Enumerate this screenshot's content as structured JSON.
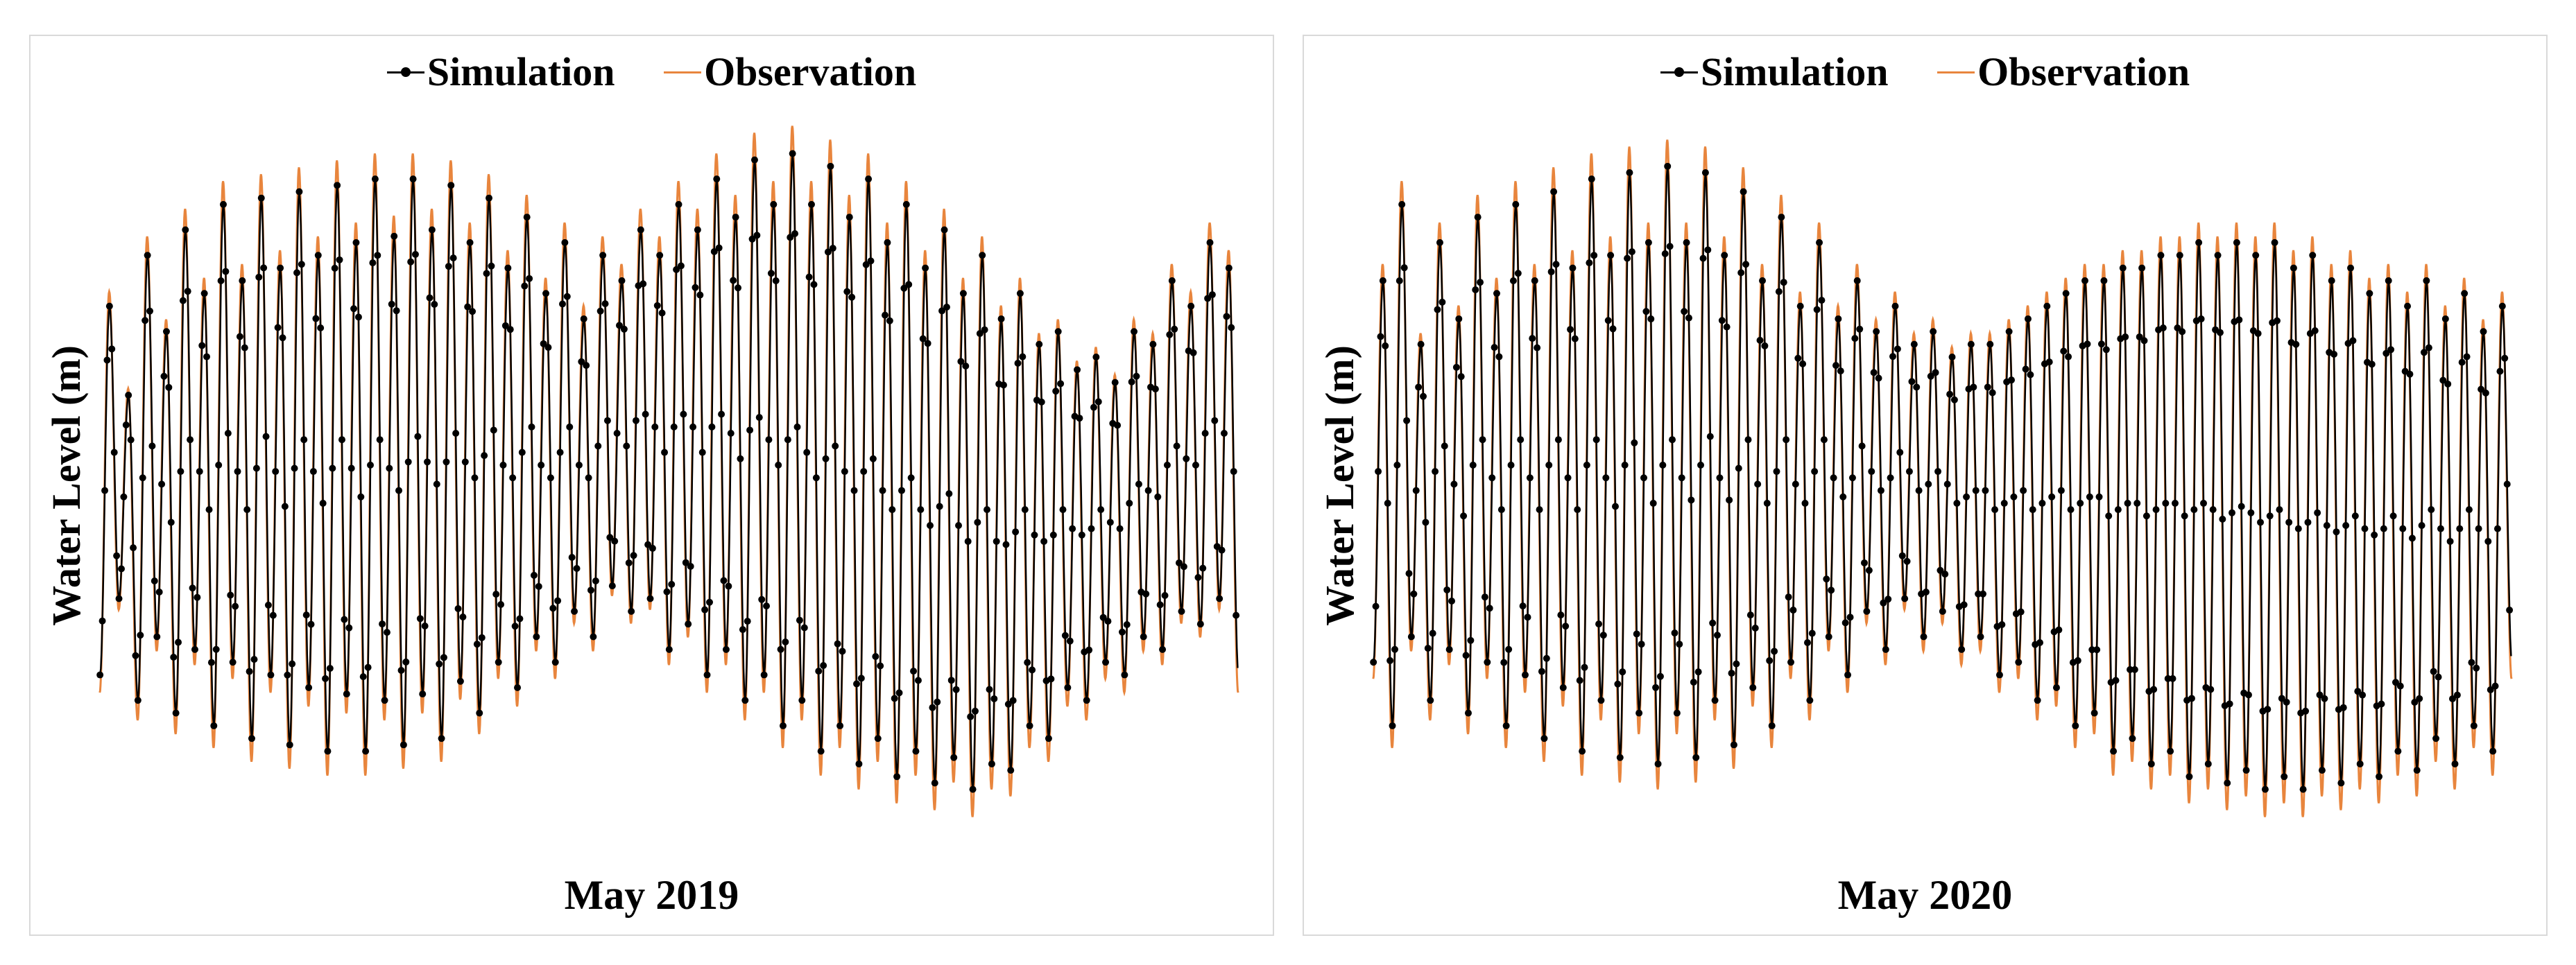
{
  "chart_data": [
    {
      "type": "line",
      "xlabel": "May 2019",
      "ylabel": "Water Level (m)",
      "legend": [
        "Simulation",
        "Observation"
      ],
      "legend_position": "top-center",
      "grid": false,
      "x_unit": "hour",
      "x_range": [
        0,
        744
      ],
      "y_range_relative": [
        0,
        1
      ],
      "tidal_cycles": 60,
      "tidal_peaks_relative": [
        0.76,
        0.62,
        0.84,
        0.72,
        0.88,
        0.78,
        0.92,
        0.8,
        0.93,
        0.82,
        0.94,
        0.84,
        0.95,
        0.86,
        0.96,
        0.87,
        0.96,
        0.88,
        0.95,
        0.86,
        0.93,
        0.82,
        0.9,
        0.78,
        0.86,
        0.74,
        0.84,
        0.8,
        0.88,
        0.84,
        0.92,
        0.88,
        0.96,
        0.9,
        0.99,
        0.92,
        1.0,
        0.92,
        0.98,
        0.9,
        0.96,
        0.86,
        0.92,
        0.82,
        0.88,
        0.78,
        0.84,
        0.74,
        0.78,
        0.7,
        0.72,
        0.66,
        0.68,
        0.64,
        0.72,
        0.7,
        0.8,
        0.76,
        0.86,
        0.82
      ],
      "tidal_troughs_relative": [
        0.18,
        0.3,
        0.14,
        0.24,
        0.12,
        0.22,
        0.1,
        0.2,
        0.08,
        0.18,
        0.07,
        0.16,
        0.06,
        0.15,
        0.06,
        0.14,
        0.07,
        0.15,
        0.08,
        0.17,
        0.12,
        0.2,
        0.16,
        0.24,
        0.2,
        0.28,
        0.24,
        0.32,
        0.28,
        0.3,
        0.22,
        0.26,
        0.18,
        0.22,
        0.14,
        0.18,
        0.1,
        0.14,
        0.06,
        0.1,
        0.04,
        0.08,
        0.02,
        0.06,
        0.01,
        0.05,
        0.0,
        0.04,
        0.03,
        0.1,
        0.08,
        0.16,
        0.14,
        0.2,
        0.18,
        0.24,
        0.22,
        0.28,
        0.26,
        0.3
      ],
      "series": [
        {
          "name": "Simulation",
          "color": "#000000",
          "marker": "circle"
        },
        {
          "name": "Observation",
          "color": "#e8853d",
          "marker": "none"
        }
      ]
    },
    {
      "type": "line",
      "xlabel": "May 2020",
      "ylabel": "Water Level (m)",
      "legend": [
        "Simulation",
        "Observation"
      ],
      "legend_position": "top-center",
      "grid": false,
      "x_unit": "hour",
      "x_range": [
        0,
        744
      ],
      "y_range_relative": [
        0,
        1
      ],
      "tidal_cycles": 60,
      "tidal_peaks_relative": [
        0.8,
        0.92,
        0.7,
        0.86,
        0.74,
        0.9,
        0.78,
        0.92,
        0.8,
        0.94,
        0.82,
        0.96,
        0.84,
        0.97,
        0.86,
        0.98,
        0.86,
        0.97,
        0.84,
        0.94,
        0.8,
        0.9,
        0.76,
        0.86,
        0.74,
        0.8,
        0.72,
        0.76,
        0.7,
        0.72,
        0.68,
        0.7,
        0.7,
        0.72,
        0.74,
        0.76,
        0.78,
        0.8,
        0.8,
        0.82,
        0.82,
        0.84,
        0.84,
        0.86,
        0.84,
        0.86,
        0.84,
        0.86,
        0.82,
        0.84,
        0.8,
        0.82,
        0.78,
        0.8,
        0.76,
        0.8,
        0.74,
        0.78,
        0.72,
        0.76
      ],
      "tidal_troughs_relative": [
        0.2,
        0.1,
        0.24,
        0.14,
        0.22,
        0.12,
        0.2,
        0.1,
        0.18,
        0.08,
        0.16,
        0.06,
        0.14,
        0.05,
        0.12,
        0.04,
        0.12,
        0.05,
        0.14,
        0.07,
        0.16,
        0.1,
        0.2,
        0.14,
        0.24,
        0.18,
        0.28,
        0.22,
        0.3,
        0.24,
        0.28,
        0.22,
        0.24,
        0.18,
        0.2,
        0.14,
        0.16,
        0.1,
        0.12,
        0.06,
        0.08,
        0.04,
        0.06,
        0.02,
        0.04,
        0.01,
        0.03,
        0.0,
        0.02,
        0.0,
        0.03,
        0.01,
        0.04,
        0.02,
        0.06,
        0.03,
        0.08,
        0.04,
        0.1,
        0.06
      ]
    }
  ]
}
